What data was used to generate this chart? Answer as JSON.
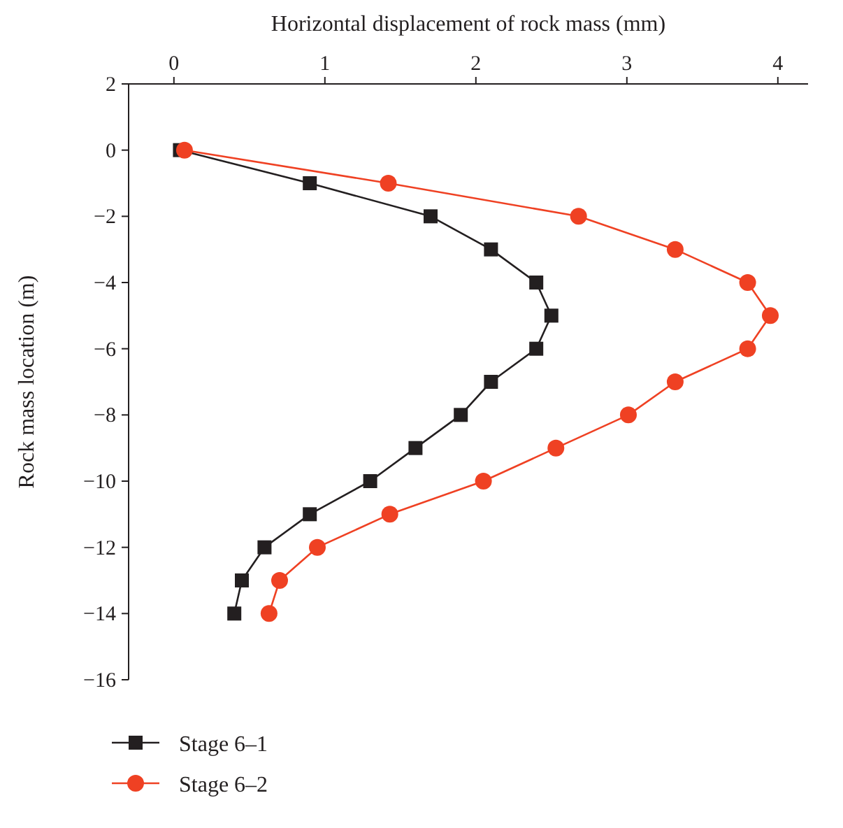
{
  "chart_data": {
    "type": "line",
    "xlabel": "Horizontal displacement of rock mass (mm)",
    "ylabel": "Rock mass location (m)",
    "xlim": [
      -0.3,
      4.2
    ],
    "xticks": [
      0,
      1,
      2,
      3,
      4
    ],
    "ylim": [
      -16,
      2
    ],
    "yticks": [
      2,
      0,
      -2,
      -4,
      -6,
      -8,
      -10,
      -12,
      -14,
      -16
    ],
    "legend": "bottom left",
    "grid": false,
    "line_style": "solid",
    "series": [
      {
        "name": "Stage 6–1",
        "color": "#231f20",
        "marker": "square",
        "x": [
          0.04,
          0.9,
          1.7,
          2.1,
          2.4,
          2.5,
          2.4,
          2.1,
          1.9,
          1.6,
          1.3,
          0.9,
          0.6,
          0.45,
          0.4
        ],
        "values": [
          0,
          -1,
          -2,
          -3,
          -4,
          -5,
          -6,
          -7,
          -8,
          -9,
          -10,
          -11,
          -12,
          -13,
          -14
        ]
      },
      {
        "name": "Stage 6–2",
        "color": "#ef4123",
        "marker": "circle",
        "x": [
          0.07,
          1.42,
          2.68,
          3.32,
          3.8,
          3.95,
          3.8,
          3.32,
          3.01,
          2.53,
          2.05,
          1.43,
          0.95,
          0.7,
          0.63
        ],
        "values": [
          0,
          -1,
          -2,
          -3,
          -4,
          -5,
          -6,
          -7,
          -8,
          -9,
          -10,
          -11,
          -12,
          -13,
          -14
        ]
      }
    ]
  }
}
